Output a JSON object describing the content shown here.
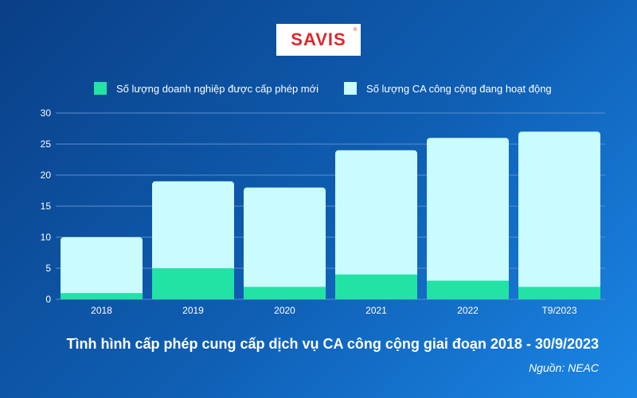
{
  "brand": {
    "logo_text": "SAVIS",
    "logo_mark": "®"
  },
  "caption": "Tình hình cấp phép cung cấp dịch vụ CA công cộng giai đoạn 2018 - 30/9/2023",
  "source": "Nguồn: NEAC",
  "colors": {
    "new_licenses": "#22e3a4",
    "active_ca": "#c9fbff",
    "grid": "#5b8fcf",
    "axis_text": "#ffffff"
  },
  "chart_data": {
    "type": "bar",
    "stacked": true,
    "categories": [
      "2018",
      "2019",
      "2020",
      "2021",
      "2022",
      "T9/2023"
    ],
    "series": [
      {
        "name": "Số lượng doanh nghiệp được cấp phép mới",
        "values": [
          1,
          5,
          2,
          4,
          3,
          2
        ]
      },
      {
        "name": "Số lượng CA công cộng đang hoạt động",
        "values": [
          10,
          19,
          18,
          24,
          26,
          27
        ]
      }
    ],
    "ylim": [
      0,
      30
    ],
    "yticks": [
      0,
      5,
      10,
      15,
      20,
      25,
      30
    ],
    "grid": true,
    "legend": "top"
  }
}
